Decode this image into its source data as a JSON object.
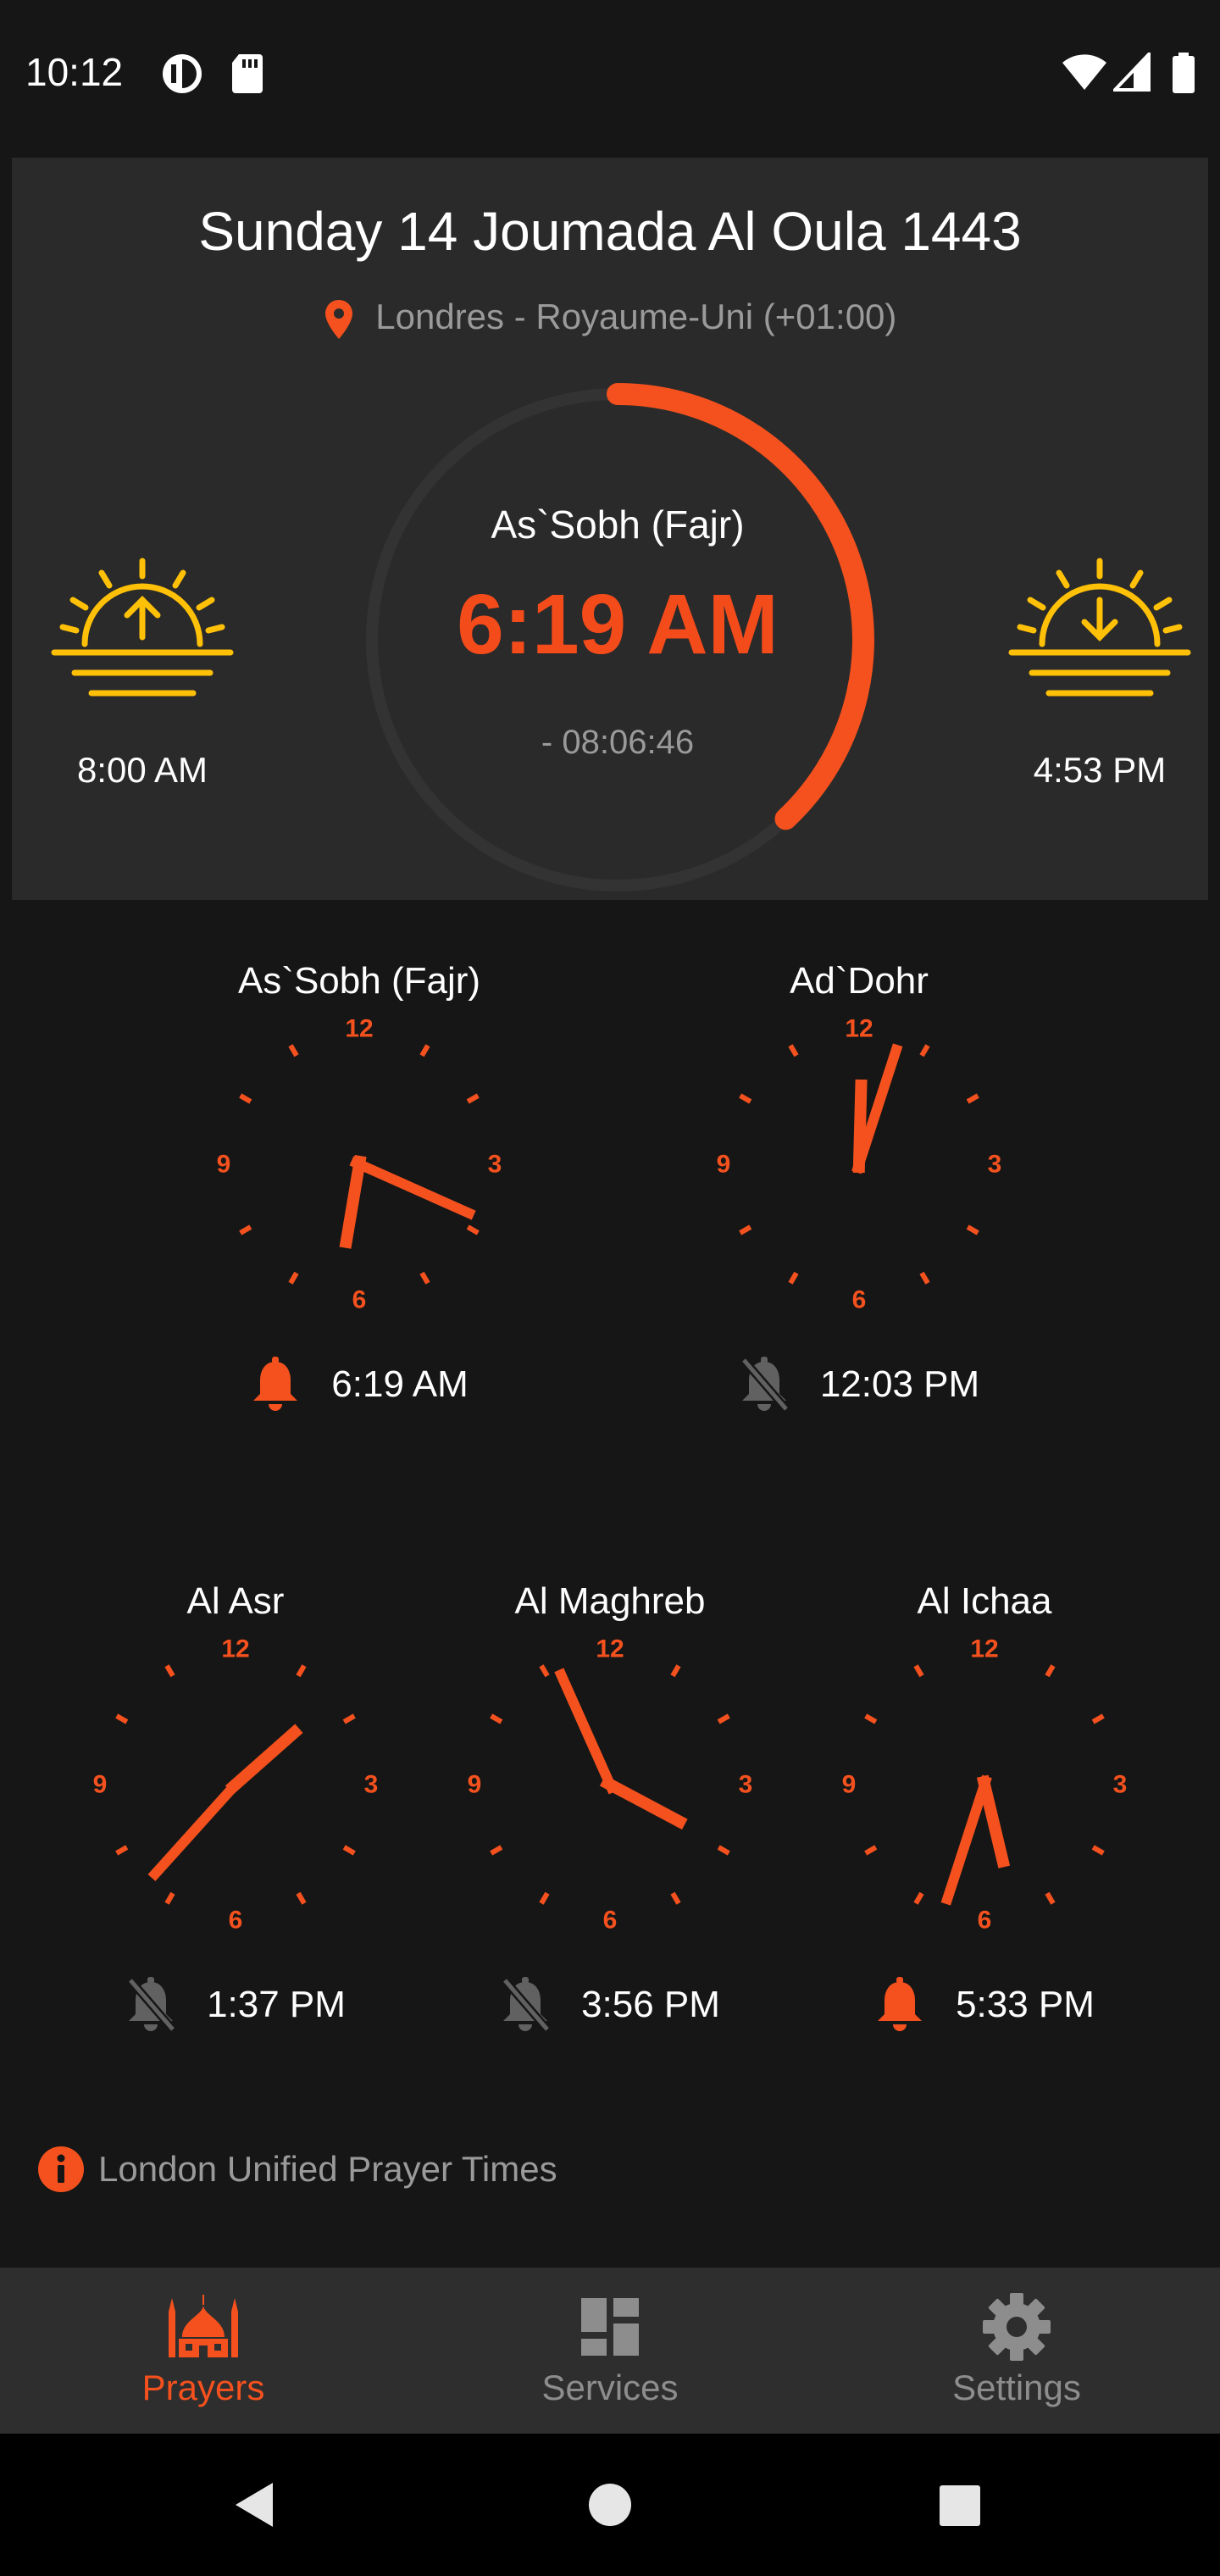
{
  "status_bar": {
    "time": "10:12"
  },
  "header": {
    "hijri_date": "Sunday 14 Joumada Al Oula 1443",
    "location": "Londres - Royaume-Uni (+01:00)",
    "sunrise_time": "8:00 AM",
    "sunset_time": "4:53 PM",
    "next_prayer_name": "As`Sobh (Fajr)",
    "next_prayer_time": "6:19 AM",
    "countdown": "- 08:06:46",
    "progress_fraction": 0.38
  },
  "clock_numerals": {
    "n12": "12",
    "n3": "3",
    "n6": "6",
    "n9": "9"
  },
  "prayers": [
    {
      "name": "As`Sobh (Fajr)",
      "time": "6:19 AM",
      "alarm_on": true,
      "hour": 6,
      "minute": 19
    },
    {
      "name": "Ad`Dohr",
      "time": "12:03 PM",
      "alarm_on": false,
      "hour": 12,
      "minute": 3
    },
    {
      "name": "Al Asr",
      "time": "1:37 PM",
      "alarm_on": false,
      "hour": 1,
      "minute": 37
    },
    {
      "name": "Al Maghreb",
      "time": "3:56 PM",
      "alarm_on": false,
      "hour": 3,
      "minute": 56
    },
    {
      "name": "Al Ichaa",
      "time": "5:33 PM",
      "alarm_on": true,
      "hour": 5,
      "minute": 33
    }
  ],
  "source_note": "London Unified Prayer Times",
  "nav": {
    "items": [
      {
        "label": "Prayers",
        "icon": "mosque-icon",
        "active": true
      },
      {
        "label": "Services",
        "icon": "dashboard-icon",
        "active": false
      },
      {
        "label": "Settings",
        "icon": "gear-icon",
        "active": false
      }
    ]
  },
  "colors": {
    "accent": "#f4511e",
    "accent_red": "#f44b1b",
    "sun_yellow": "#ffc107",
    "card_bg": "#2a2a2a",
    "page_bg": "#161616",
    "muted": "#9a9a9a"
  }
}
